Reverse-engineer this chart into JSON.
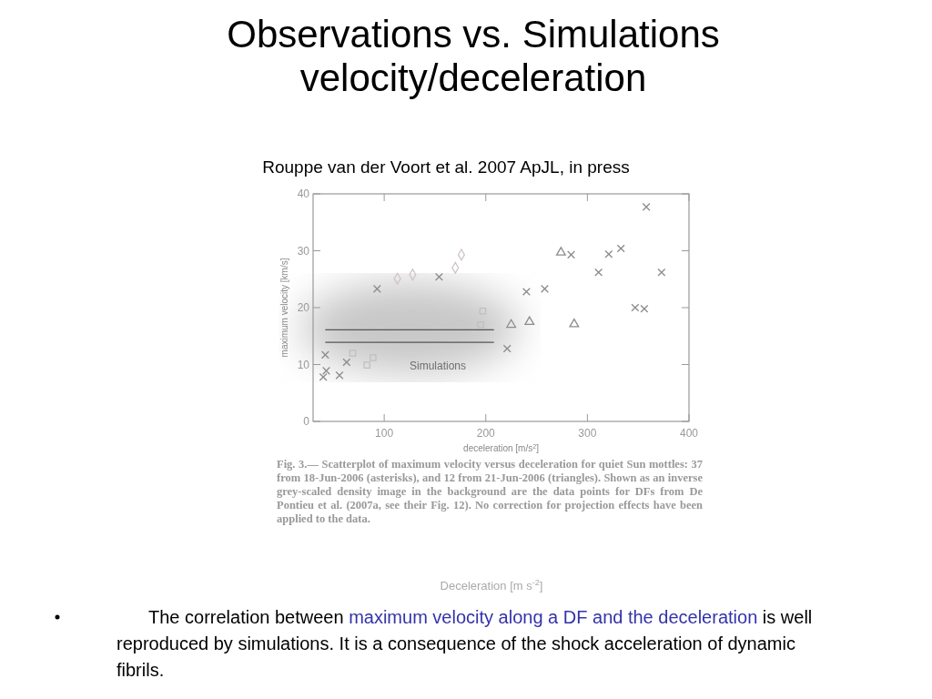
{
  "chart_data": {
    "type": "scatter",
    "title": "Observations vs. Simulations\nvelocity/deceleration",
    "subtitle": "Rouppe van der Voort et al. 2007 ApJL, in press",
    "xlabel": "deceleration [m/s$^{2}$]",
    "ylabel": "maximum velocity [km/s]",
    "xlim": [
      30,
      400
    ],
    "ylim": [
      0,
      40
    ],
    "xticks": [
      100,
      200,
      300,
      400
    ],
    "yticks": [
      0,
      10,
      20,
      30,
      40
    ],
    "grid": false,
    "series": [
      {
        "marker": "cross",
        "color": "#8c8c8c",
        "x": [
          42,
          43,
          40,
          56,
          63,
          93,
          154,
          221,
          240,
          258,
          284,
          311,
          321,
          333,
          358,
          373,
          347,
          356
        ],
        "values": [
          11.7,
          8.9,
          7.8,
          8.1,
          10.4,
          23.3,
          25.4,
          12.8,
          22.8,
          23.3,
          29.3,
          26.2,
          29.4,
          30.4,
          37.7,
          26.2,
          20.0,
          19.8
        ]
      },
      {
        "marker": "triangle",
        "color": "#8c8c8c",
        "x": [
          274,
          225,
          243,
          287
        ],
        "values": [
          29.7,
          17.0,
          17.5,
          17.1
        ]
      },
      {
        "marker": "square",
        "color": "#c0c0c0",
        "x": [
          69,
          83,
          89,
          197,
          195
        ],
        "values": [
          12.0,
          9.9,
          11.2,
          19.4,
          17.0
        ]
      },
      {
        "marker": "diamond",
        "color": "#d0c4c4",
        "x": [
          113,
          128,
          170,
          176
        ],
        "values": [
          25.1,
          25.8,
          27.0,
          29.3
        ]
      },
      {
        "type": "line",
        "marker": "none",
        "color": "#555555",
        "x": [
          42,
          208
        ],
        "values": [
          16.1,
          16.1
        ]
      },
      {
        "type": "line",
        "marker": "none",
        "color": "#555555",
        "x": [
          42,
          208
        ],
        "values": [
          13.9,
          13.9
        ]
      }
    ],
    "annotations": [
      "Simulations",
      "Fig. 3.— Scatterplot of maximum velocity versus deceleration for quiet Sun mottles: 37 from 18-Jun-2006 (asterisks), and 12 from 21-Jun-2006 (triangles). Shown as an inverse grey-scaled density image in the background are the data points for DFs from De Pontieu et al. (2007a, see their Fig. 12). No correction for projection effects have been applied to the data.",
      "Deceleration [m s$^{-2}$]",
      "The correlation between ",
      "maximum velocity along a DF and the deceleration",
      " is well reproduced by simulations. It is a consequence of the shock acceleration of dynamic fibrils."
    ]
  }
}
